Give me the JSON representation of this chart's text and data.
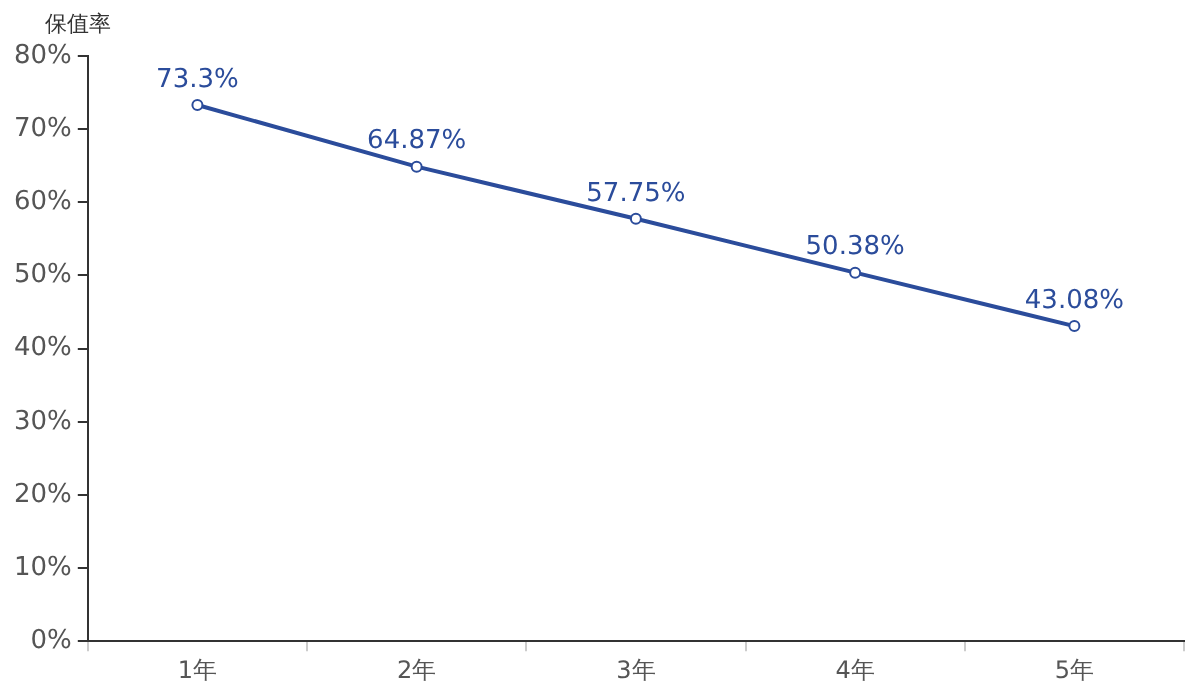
{
  "chart_data": {
    "type": "line",
    "ylabel": "保值率",
    "categories": [
      "1年",
      "2年",
      "3年",
      "4年",
      "5年"
    ],
    "series": [
      {
        "color": "#2b4c9b",
        "values": [
          73.3,
          64.87,
          57.75,
          50.38,
          43.08
        ],
        "value_labels": [
          "73.3%",
          "64.87%",
          "57.75%",
          "50.38%",
          "43.08%"
        ]
      }
    ],
    "ylim": [
      0,
      80
    ],
    "yticks": [
      {
        "value": 0,
        "label": "0%"
      },
      {
        "value": 10,
        "label": "10%"
      },
      {
        "value": 20,
        "label": "20%"
      },
      {
        "value": 30,
        "label": "30%"
      },
      {
        "value": 40,
        "label": "40%"
      },
      {
        "value": 50,
        "label": "50%"
      },
      {
        "value": 60,
        "label": "60%"
      },
      {
        "value": 70,
        "label": "70%"
      },
      {
        "value": 80,
        "label": "80%"
      }
    ],
    "grid": false,
    "legend": false,
    "marker": "circle",
    "line_style": "solid"
  }
}
